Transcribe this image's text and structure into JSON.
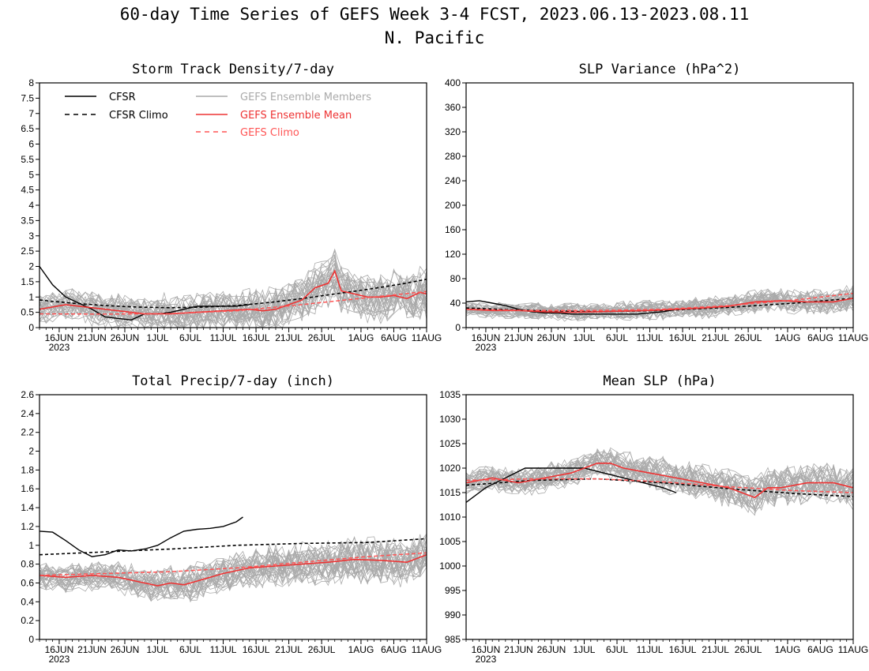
{
  "header": {
    "title": "60-day Time Series of GEFS Week 3-4 FCST, 2023.06.13-2023.08.11",
    "subtitle": "N. Pacific"
  },
  "colors": {
    "cfsr": "#000000",
    "members": "#aaaaaa",
    "mean": "#ee3333",
    "climo_gefs": "#ff5555"
  },
  "legend": {
    "cfsr": "CFSR",
    "cfsr_climo": "CFSR Climo",
    "members": "GEFS Ensemble Members",
    "mean": "GEFS Ensemble Mean",
    "gefs_climo": "GEFS Climo"
  },
  "x_tick_labels": [
    "16JUN",
    "21JUN",
    "26JUN",
    "1JUL",
    "6JUL",
    "11JUL",
    "16JUL",
    "21JUL",
    "26JUL",
    "1AUG",
    "6AUG",
    "11AUG"
  ],
  "x_tick_days": [
    3,
    8,
    13,
    18,
    23,
    28,
    33,
    38,
    43,
    49,
    54,
    59
  ],
  "year_label": "2023",
  "chart_data": [
    {
      "type": "line",
      "title": "Storm Track Density/7-day",
      "ylim": [
        0,
        8
      ],
      "yticks": [
        "0",
        "0.5",
        "1",
        "1.5",
        "2",
        "2.5",
        "3",
        "3.5",
        "4",
        "4.5",
        "5",
        "5.5",
        "6",
        "6.5",
        "7",
        "7.5",
        "8"
      ],
      "ytick_values": [
        0,
        0.5,
        1,
        1.5,
        2,
        2.5,
        3,
        3.5,
        4,
        4.5,
        5,
        5.5,
        6,
        6.5,
        7,
        7.5,
        8
      ],
      "member_count": 30,
      "member_spread": 0.55,
      "series": [
        {
          "name": "CFSR",
          "x": [
            0,
            2,
            4,
            6,
            8,
            10,
            12,
            14,
            16,
            18,
            20,
            22,
            24,
            26,
            28,
            30,
            32
          ],
          "values": [
            2.0,
            1.4,
            1.0,
            0.8,
            0.6,
            0.35,
            0.3,
            0.25,
            0.45,
            0.45,
            0.5,
            0.6,
            0.7,
            0.7,
            0.7,
            0.7,
            0.75
          ]
        },
        {
          "name": "CFSR Climo",
          "x": [
            0,
            5,
            10,
            15,
            20,
            25,
            30,
            35,
            40,
            45,
            50,
            55,
            59
          ],
          "values": [
            0.9,
            0.8,
            0.72,
            0.67,
            0.65,
            0.67,
            0.72,
            0.82,
            0.95,
            1.1,
            1.25,
            1.42,
            1.58
          ]
        },
        {
          "name": "GEFS Ensemble Members",
          "x": [],
          "values": []
        },
        {
          "name": "GEFS Ensemble Mean",
          "x": [
            0,
            4,
            8,
            12,
            16,
            20,
            24,
            28,
            32,
            34,
            36,
            38,
            40,
            42,
            44,
            45,
            46,
            48,
            50,
            52,
            54,
            56,
            58,
            59
          ],
          "values": [
            0.6,
            0.75,
            0.65,
            0.55,
            0.45,
            0.45,
            0.5,
            0.55,
            0.6,
            0.55,
            0.6,
            0.75,
            0.9,
            1.3,
            1.45,
            1.85,
            1.2,
            1.1,
            1.0,
            1.0,
            1.05,
            0.95,
            1.15,
            1.1
          ]
        },
        {
          "name": "GEFS Climo",
          "x": [
            0,
            10,
            20,
            30,
            40,
            50,
            59
          ],
          "values": [
            0.45,
            0.44,
            0.46,
            0.55,
            0.75,
            0.98,
            1.18
          ]
        }
      ]
    },
    {
      "type": "line",
      "title": "SLP Variance (hPa^2)",
      "ylim": [
        0,
        400
      ],
      "yticks": [
        "0",
        "40",
        "80",
        "120",
        "160",
        "200",
        "240",
        "280",
        "320",
        "360",
        "400"
      ],
      "ytick_values": [
        0,
        40,
        80,
        120,
        160,
        200,
        240,
        280,
        320,
        360,
        400
      ],
      "member_count": 30,
      "member_spread": 13,
      "series": [
        {
          "name": "CFSR",
          "x": [
            0,
            2,
            4,
            6,
            8,
            10,
            12,
            14,
            16,
            18,
            20,
            22,
            24,
            26,
            28,
            30,
            32
          ],
          "values": [
            42,
            44,
            40,
            36,
            30,
            26,
            24,
            24,
            22,
            22,
            22,
            22,
            22,
            22,
            24,
            26,
            30
          ]
        },
        {
          "name": "CFSR Climo",
          "x": [
            0,
            10,
            20,
            30,
            40,
            50,
            59
          ],
          "values": [
            32,
            28,
            26,
            28,
            33,
            40,
            48
          ]
        },
        {
          "name": "GEFS Ensemble Members",
          "x": [],
          "values": []
        },
        {
          "name": "GEFS Ensemble Mean",
          "x": [
            0,
            4,
            8,
            12,
            16,
            20,
            24,
            28,
            32,
            36,
            40,
            44,
            48,
            52,
            56,
            59
          ],
          "values": [
            30,
            28,
            28,
            26,
            25,
            26,
            27,
            28,
            30,
            32,
            35,
            42,
            44,
            42,
            42,
            48
          ]
        },
        {
          "name": "GEFS Climo",
          "x": [
            0,
            10,
            20,
            30,
            40,
            50,
            59
          ],
          "values": [
            30,
            28,
            28,
            30,
            36,
            45,
            56
          ]
        }
      ]
    },
    {
      "type": "line",
      "title": "Total Precip/7-day (inch)",
      "ylim": [
        0,
        2.6
      ],
      "yticks": [
        "0",
        "0.2",
        "0.4",
        "0.6",
        "0.8",
        "1",
        "1.2",
        "1.4",
        "1.6",
        "1.8",
        "2",
        "2.2",
        "2.4",
        "2.6"
      ],
      "ytick_values": [
        0,
        0.2,
        0.4,
        0.6,
        0.8,
        1.0,
        1.2,
        1.4,
        1.6,
        1.8,
        2.0,
        2.2,
        2.4,
        2.6
      ],
      "member_count": 30,
      "member_spread": 0.16,
      "series": [
        {
          "name": "CFSR",
          "x": [
            0,
            2,
            4,
            6,
            8,
            10,
            12,
            14,
            16,
            18,
            20,
            22,
            24,
            26,
            28,
            30,
            31
          ],
          "values": [
            1.15,
            1.14,
            1.05,
            0.95,
            0.88,
            0.9,
            0.95,
            0.94,
            0.96,
            1.0,
            1.08,
            1.15,
            1.17,
            1.18,
            1.2,
            1.25,
            1.3
          ]
        },
        {
          "name": "CFSR Climo",
          "x": [
            0,
            10,
            20,
            30,
            40,
            50,
            59
          ],
          "values": [
            0.9,
            0.93,
            0.96,
            1.0,
            1.02,
            1.03,
            1.07
          ]
        },
        {
          "name": "GEFS Ensemble Members",
          "x": [],
          "values": []
        },
        {
          "name": "GEFS Ensemble Mean",
          "x": [
            0,
            4,
            8,
            12,
            16,
            18,
            20,
            22,
            24,
            28,
            32,
            36,
            40,
            44,
            48,
            52,
            56,
            59
          ],
          "values": [
            0.68,
            0.66,
            0.68,
            0.66,
            0.6,
            0.57,
            0.6,
            0.58,
            0.62,
            0.7,
            0.76,
            0.78,
            0.8,
            0.82,
            0.85,
            0.84,
            0.82,
            0.9
          ]
        },
        {
          "name": "GEFS Climo",
          "x": [
            0,
            10,
            20,
            30,
            40,
            50,
            59
          ],
          "values": [
            0.68,
            0.7,
            0.72,
            0.76,
            0.82,
            0.88,
            0.92
          ]
        }
      ]
    },
    {
      "type": "line",
      "title": "Mean SLP (hPa)",
      "ylim": [
        985,
        1035
      ],
      "yticks": [
        "985",
        "990",
        "995",
        "1000",
        "1005",
        "1010",
        "1015",
        "1020",
        "1025",
        "1030",
        "1035"
      ],
      "ytick_values": [
        985,
        990,
        995,
        1000,
        1005,
        1010,
        1015,
        1020,
        1025,
        1030,
        1035
      ],
      "member_count": 30,
      "member_spread": 2.8,
      "series": [
        {
          "name": "CFSR",
          "x": [
            0,
            3,
            6,
            9,
            12,
            15,
            18,
            21,
            24,
            27,
            30,
            32
          ],
          "values": [
            1013,
            1016,
            1018,
            1020,
            1020,
            1020,
            1020,
            1019,
            1018,
            1017,
            1016,
            1015
          ]
        },
        {
          "name": "CFSR Climo",
          "x": [
            0,
            10,
            20,
            30,
            40,
            50,
            59
          ],
          "values": [
            1016.5,
            1017.5,
            1017.8,
            1017,
            1015.8,
            1014.8,
            1014.2
          ]
        },
        {
          "name": "GEFS Ensemble Members",
          "x": [],
          "values": []
        },
        {
          "name": "GEFS Ensemble Mean",
          "x": [
            0,
            4,
            8,
            12,
            16,
            20,
            22,
            24,
            28,
            32,
            36,
            40,
            44,
            46,
            48,
            52,
            56,
            59
          ],
          "values": [
            1017,
            1018,
            1017,
            1018,
            1019,
            1021,
            1021,
            1020,
            1019,
            1018,
            1017,
            1016,
            1014,
            1016,
            1016,
            1017,
            1017,
            1016
          ]
        },
        {
          "name": "GEFS Climo",
          "x": [
            0,
            10,
            20,
            30,
            40,
            50,
            59
          ],
          "values": [
            1017.5,
            1017.8,
            1017.8,
            1017.2,
            1016.2,
            1015.4,
            1015
          ]
        }
      ]
    }
  ]
}
